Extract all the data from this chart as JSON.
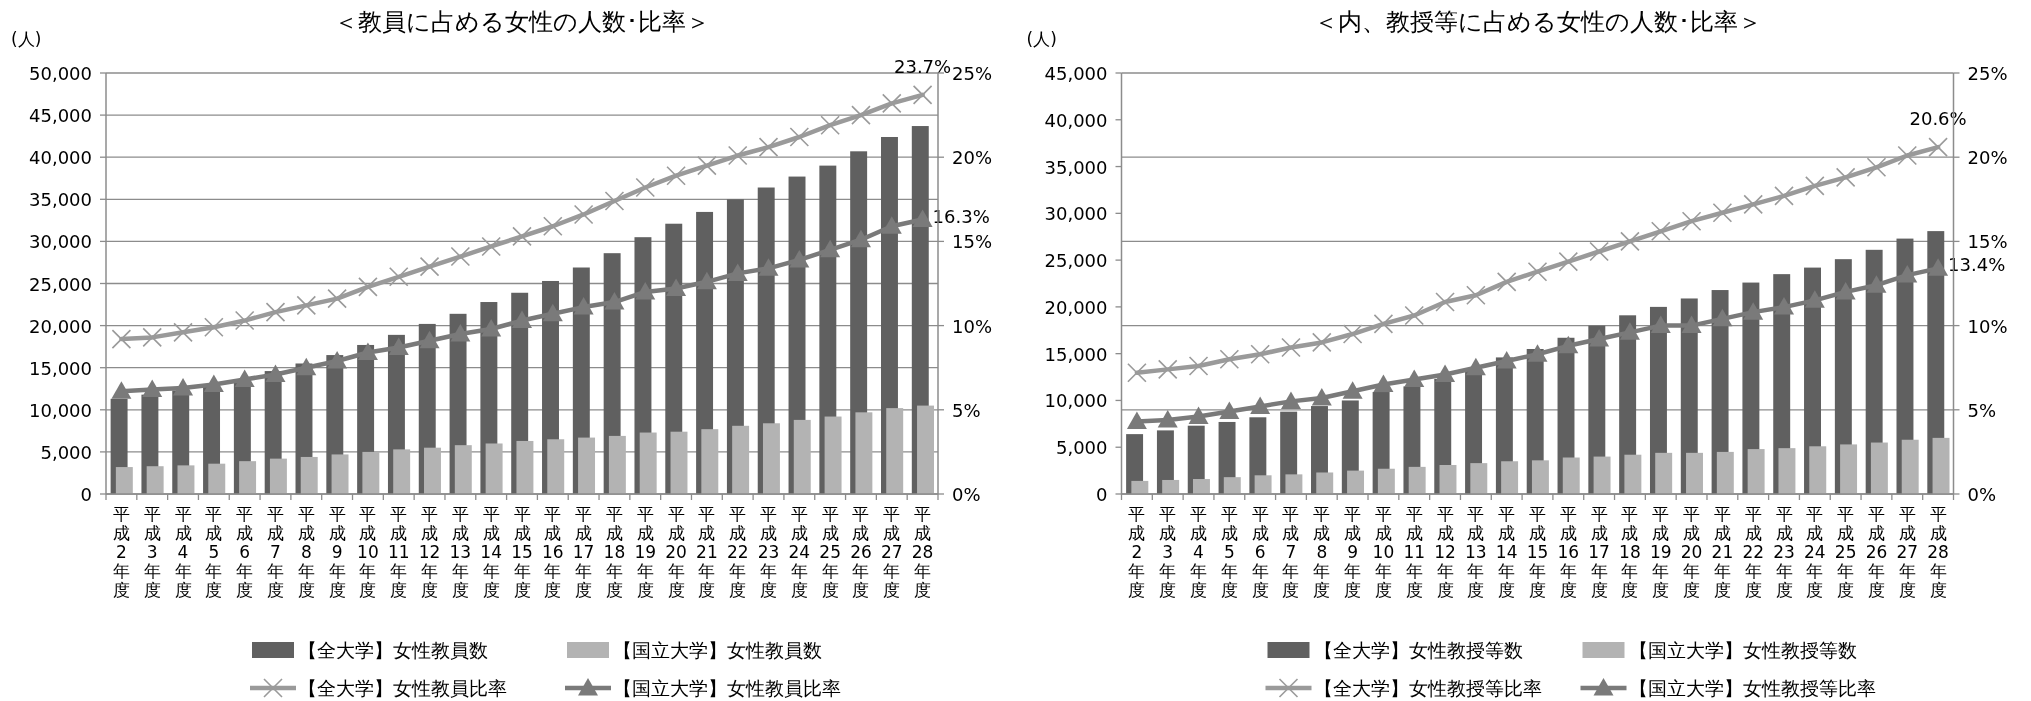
{
  "chart_data": [
    {
      "type": "bar",
      "title": "＜教員に占める女性の人数･比率＞",
      "ylabel": "(人)",
      "categories": [
        "平成2年度",
        "平成3年度",
        "平成4年度",
        "平成5年度",
        "平成6年度",
        "平成7年度",
        "平成8年度",
        "平成9年度",
        "平成10年度",
        "平成11年度",
        "平成12年度",
        "平成13年度",
        "平成14年度",
        "平成15年度",
        "平成16年度",
        "平成17年度",
        "平成18年度",
        "平成19年度",
        "平成20年度",
        "平成21年度",
        "平成22年度",
        "平成23年度",
        "平成24年度",
        "平成25年度",
        "平成26年度",
        "平成27年度",
        "平成28年度"
      ],
      "series": [
        {
          "name": "【全大学】女性教員数",
          "type": "bar",
          "color": "#606060",
          "values": [
            11300,
            11800,
            12300,
            12900,
            13600,
            14600,
            15500,
            16500,
            17700,
            18900,
            20200,
            21400,
            22800,
            23900,
            25300,
            26900,
            28600,
            30500,
            32100,
            33500,
            35000,
            36400,
            37700,
            39000,
            40700,
            42400,
            43700
          ]
        },
        {
          "name": "【国立大学】女性教員数",
          "type": "bar",
          "color": "#b3b3b3",
          "values": [
            3200,
            3300,
            3400,
            3600,
            3900,
            4200,
            4400,
            4700,
            5000,
            5300,
            5500,
            5800,
            6000,
            6300,
            6500,
            6700,
            6900,
            7300,
            7400,
            7700,
            8100,
            8400,
            8800,
            9200,
            9700,
            10200,
            10500
          ]
        },
        {
          "name": "【全大学】女性教員比率",
          "type": "line",
          "axis": "y2",
          "marker": "cross",
          "color": "#9a9a9a",
          "values": [
            9.2,
            9.3,
            9.6,
            9.9,
            10.3,
            10.8,
            11.2,
            11.6,
            12.3,
            12.9,
            13.5,
            14.1,
            14.7,
            15.3,
            15.9,
            16.6,
            17.4,
            18.2,
            18.9,
            19.5,
            20.1,
            20.6,
            21.2,
            21.9,
            22.5,
            23.2,
            23.7
          ],
          "value_labels": [
            null,
            null,
            null,
            null,
            null,
            null,
            null,
            null,
            null,
            null,
            null,
            null,
            null,
            null,
            null,
            null,
            null,
            null,
            null,
            null,
            null,
            null,
            null,
            null,
            null,
            null,
            "23.7%"
          ]
        },
        {
          "name": "【国立大学】女性教員比率",
          "type": "line",
          "axis": "y2",
          "marker": "triangle",
          "color": "#7a7a7a",
          "values": [
            6.1,
            6.2,
            6.3,
            6.5,
            6.8,
            7.1,
            7.5,
            7.9,
            8.4,
            8.7,
            9.1,
            9.5,
            9.8,
            10.3,
            10.7,
            11.1,
            11.4,
            12.0,
            12.2,
            12.6,
            13.1,
            13.4,
            13.9,
            14.5,
            15.1,
            15.9,
            16.3
          ],
          "value_labels": [
            null,
            null,
            null,
            null,
            null,
            null,
            null,
            null,
            null,
            null,
            null,
            null,
            null,
            null,
            null,
            null,
            null,
            null,
            null,
            null,
            null,
            null,
            null,
            null,
            null,
            null,
            "16.3%"
          ]
        }
      ],
      "ylim": [
        0,
        50000
      ],
      "yticks": [
        {
          "value": 0,
          "label": "0"
        },
        {
          "value": 5000,
          "label": "5,000"
        },
        {
          "value": 10000,
          "label": "10,000"
        },
        {
          "value": 15000,
          "label": "15,000"
        },
        {
          "value": 20000,
          "label": "20,000"
        },
        {
          "value": 25000,
          "label": "25,000"
        },
        {
          "value": 30000,
          "label": "30,000"
        },
        {
          "value": 35000,
          "label": "35,000"
        },
        {
          "value": 40000,
          "label": "40,000"
        },
        {
          "value": 45000,
          "label": "45,000"
        },
        {
          "value": 50000,
          "label": "50,000"
        }
      ],
      "y2lim": [
        0,
        25
      ],
      "y2ticks": [
        {
          "value": 0,
          "label": "0%"
        },
        {
          "value": 5,
          "label": "5%"
        },
        {
          "value": 10,
          "label": "10%"
        },
        {
          "value": 15,
          "label": "15%"
        },
        {
          "value": 20,
          "label": "20%"
        },
        {
          "value": 25,
          "label": "25%"
        }
      ],
      "grid": "y",
      "legend": "bottom"
    },
    {
      "type": "bar",
      "title": "＜内、教授等に占める女性の人数･比率＞",
      "ylabel": "(人)",
      "categories": [
        "平成2年度",
        "平成3年度",
        "平成4年度",
        "平成5年度",
        "平成6年度",
        "平成7年度",
        "平成8年度",
        "平成9年度",
        "平成10年度",
        "平成11年度",
        "平成12年度",
        "平成13年度",
        "平成14年度",
        "平成15年度",
        "平成16年度",
        "平成17年度",
        "平成18年度",
        "平成19年度",
        "平成20年度",
        "平成21年度",
        "平成22年度",
        "平成23年度",
        "平成24年度",
        "平成25年度",
        "平成26年度",
        "平成27年度",
        "平成28年度"
      ],
      "series": [
        {
          "name": "【全大学】女性教授等数",
          "type": "bar",
          "color": "#606060",
          "values": [
            6400,
            6800,
            7300,
            7700,
            8200,
            8800,
            9400,
            10000,
            10900,
            11500,
            12300,
            13300,
            14600,
            15500,
            16700,
            18000,
            19100,
            20000,
            20900,
            21800,
            22600,
            23500,
            24200,
            25100,
            26100,
            27300,
            28100
          ]
        },
        {
          "name": "【国立大学】女性教授等数",
          "type": "bar",
          "color": "#b3b3b3",
          "values": [
            1400,
            1500,
            1600,
            1800,
            2000,
            2100,
            2300,
            2500,
            2700,
            2900,
            3100,
            3300,
            3500,
            3600,
            3900,
            4000,
            4200,
            4400,
            4400,
            4500,
            4800,
            4900,
            5100,
            5300,
            5500,
            5800,
            6000
          ]
        },
        {
          "name": "【全大学】女性教授等比率",
          "type": "line",
          "axis": "y2",
          "marker": "cross",
          "color": "#9a9a9a",
          "values": [
            7.2,
            7.4,
            7.6,
            8.0,
            8.3,
            8.7,
            9.0,
            9.5,
            10.1,
            10.6,
            11.4,
            11.8,
            12.6,
            13.2,
            13.8,
            14.4,
            15.0,
            15.6,
            16.2,
            16.7,
            17.2,
            17.7,
            18.3,
            18.8,
            19.4,
            20.1,
            20.6
          ],
          "value_labels": [
            null,
            null,
            null,
            null,
            null,
            null,
            null,
            null,
            null,
            null,
            null,
            null,
            null,
            null,
            null,
            null,
            null,
            null,
            null,
            null,
            null,
            null,
            null,
            null,
            null,
            null,
            "20.6%"
          ]
        },
        {
          "name": "【国立大学】女性教授等比率",
          "type": "line",
          "axis": "y2",
          "marker": "triangle",
          "color": "#7a7a7a",
          "values": [
            4.3,
            4.4,
            4.6,
            4.9,
            5.2,
            5.5,
            5.7,
            6.1,
            6.5,
            6.8,
            7.1,
            7.5,
            7.9,
            8.3,
            8.8,
            9.2,
            9.6,
            10.0,
            10.0,
            10.4,
            10.8,
            11.1,
            11.5,
            12.0,
            12.4,
            13.0,
            13.4
          ],
          "value_labels": [
            null,
            null,
            null,
            null,
            null,
            null,
            null,
            null,
            null,
            null,
            null,
            null,
            null,
            null,
            null,
            null,
            null,
            null,
            null,
            null,
            null,
            null,
            null,
            null,
            null,
            null,
            "13.4%"
          ]
        }
      ],
      "ylim": [
        0,
        45000
      ],
      "yticks": [
        {
          "value": 0,
          "label": "0"
        },
        {
          "value": 5000,
          "label": "5,000"
        },
        {
          "value": 10000,
          "label": "10,000"
        },
        {
          "value": 15000,
          "label": "15,000"
        },
        {
          "value": 20000,
          "label": "20,000"
        },
        {
          "value": 25000,
          "label": "25,000"
        },
        {
          "value": 30000,
          "label": "30,000"
        },
        {
          "value": 35000,
          "label": "35,000"
        },
        {
          "value": 40000,
          "label": "40,000"
        },
        {
          "value": 45000,
          "label": "45,000"
        }
      ],
      "y2lim": [
        0,
        25
      ],
      "y2ticks": [
        {
          "value": 0,
          "label": "0%"
        },
        {
          "value": 5,
          "label": "5%"
        },
        {
          "value": 10,
          "label": "10%"
        },
        {
          "value": 15,
          "label": "15%"
        },
        {
          "value": 20,
          "label": "20%"
        },
        {
          "value": 25,
          "label": "25%"
        }
      ],
      "grid": "y2",
      "legend": "bottom"
    }
  ]
}
